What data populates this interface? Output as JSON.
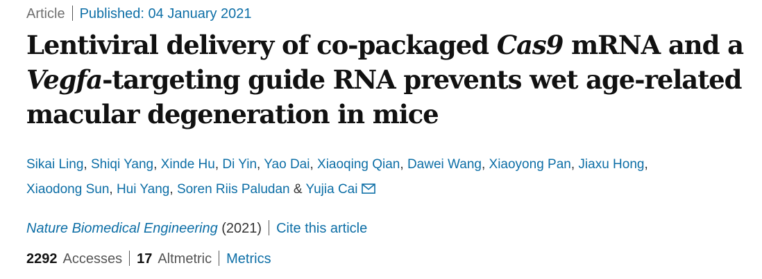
{
  "header": {
    "article_type": "Article",
    "published": "Published: 04 January 2021"
  },
  "title": {
    "p1": "Lentiviral delivery of co-packaged ",
    "gene1": "Cas9",
    "p2": " mRNA and a ",
    "gene2": "Vegfa",
    "p3": "-targeting guide RNA prevents wet age-related macular degeneration in mice"
  },
  "authors": {
    "list": [
      "Sikai Ling",
      "Shiqi Yang",
      "Xinde Hu",
      "Di Yin",
      "Yao Dai",
      "Xiaoqing Qian",
      "Dawei Wang",
      "Xiaoyong Pan",
      "Jiaxu Hong",
      "Xiaodong Sun",
      "Hui Yang",
      "Soren Riis Paludan",
      "Yujia Cai"
    ],
    "separator": ", ",
    "ampersand": " & ",
    "contact_icon": "envelope-icon"
  },
  "publication": {
    "journal": "Nature Biomedical Engineering",
    "year": " (2021)",
    "cite_label": "Cite this article"
  },
  "metrics": {
    "accesses_count": "2292",
    "accesses_label": "Accesses",
    "altmetric_count": "17",
    "altmetric_label": "Altmetric",
    "metrics_label": "Metrics"
  },
  "colors": {
    "link": "#0c6ea6",
    "text": "#222222",
    "muted": "#6f6f6f"
  }
}
